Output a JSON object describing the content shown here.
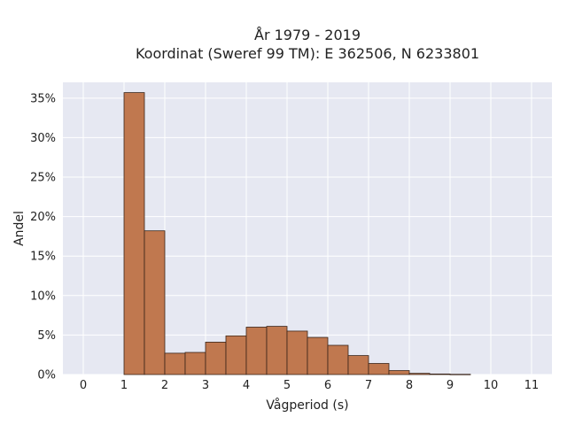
{
  "chart_data": {
    "type": "bar",
    "title": [
      "År 1979 - 2019",
      "Koordinat (Sweref 99 TM): E 362506, N 6233801"
    ],
    "xlabel": "Vågperiod (s)",
    "ylabel": "Andel",
    "xlim": [
      -0.5,
      11.5
    ],
    "ylim": [
      0,
      0.37
    ],
    "x_ticks": [
      0,
      1,
      2,
      3,
      4,
      5,
      6,
      7,
      8,
      9,
      10,
      11
    ],
    "x_tick_labels": [
      "0",
      "1",
      "2",
      "3",
      "4",
      "5",
      "6",
      "7",
      "8",
      "9",
      "10",
      "11"
    ],
    "y_ticks": [
      0,
      0.05,
      0.1,
      0.15,
      0.2,
      0.25,
      0.3,
      0.35
    ],
    "y_tick_labels": [
      "0%",
      "5%",
      "10%",
      "15%",
      "20%",
      "25%",
      "30%",
      "35%"
    ],
    "bin_width": 0.5,
    "bins": [
      {
        "start": 1.0,
        "value": 0.357
      },
      {
        "start": 1.5,
        "value": 0.182
      },
      {
        "start": 2.0,
        "value": 0.027
      },
      {
        "start": 2.5,
        "value": 0.028
      },
      {
        "start": 3.0,
        "value": 0.041
      },
      {
        "start": 3.5,
        "value": 0.049
      },
      {
        "start": 4.0,
        "value": 0.06
      },
      {
        "start": 4.5,
        "value": 0.061
      },
      {
        "start": 5.0,
        "value": 0.055
      },
      {
        "start": 5.5,
        "value": 0.047
      },
      {
        "start": 6.0,
        "value": 0.037
      },
      {
        "start": 6.5,
        "value": 0.024
      },
      {
        "start": 7.0,
        "value": 0.014
      },
      {
        "start": 7.5,
        "value": 0.005
      },
      {
        "start": 8.0,
        "value": 0.0015
      },
      {
        "start": 8.5,
        "value": 0.0007
      },
      {
        "start": 9.0,
        "value": 0.0003
      }
    ],
    "grid": true,
    "background_color": "#e6e8f2",
    "bar_color": "#c0784f",
    "bar_edge_color": "#3a2418"
  }
}
